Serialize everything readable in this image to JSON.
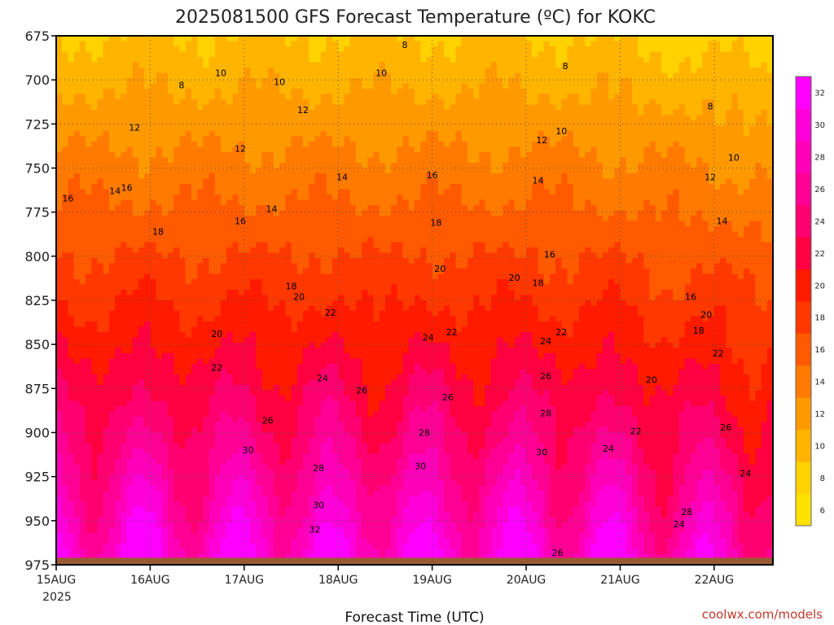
{
  "chart_data": {
    "type": "heatmap",
    "title": "2025081500 GFS Forecast Temperature (ºC) for KOKC",
    "xlabel": "Forecast Time (UTC)",
    "ylabel": "",
    "credit": "coolwx.com/models",
    "x_ticks": [
      "15AUG",
      "16AUG",
      "17AUG",
      "18AUG",
      "19AUG",
      "20AUG",
      "21AUG",
      "22AUG"
    ],
    "x_year_label": "2025",
    "x_range_hours": [
      0,
      183
    ],
    "y_ticks": [
      675,
      700,
      725,
      750,
      775,
      800,
      825,
      850,
      875,
      900,
      925,
      950,
      975
    ],
    "y_range_hpa": [
      675,
      975
    ],
    "y_reversed": true,
    "colorbar_ticks": [
      6,
      8,
      10,
      12,
      14,
      16,
      18,
      20,
      22,
      24,
      26,
      28,
      30,
      32
    ],
    "colorbar_colors": [
      "#ffe100",
      "#ffd200",
      "#ffb400",
      "#ff9900",
      "#ff7a00",
      "#ff5a00",
      "#ff3800",
      "#ff1a00",
      "#ff0040",
      "#ff0070",
      "#ff0095",
      "#ff00b8",
      "#ff00d8",
      "#ff00ff"
    ],
    "colorbar_bounds": [
      5,
      33
    ],
    "contour_interval": 2,
    "surface_pressure_hpa": 971,
    "ground_color": "#9a5a33",
    "grid": true,
    "contour_labels": [
      {
        "label": "8",
        "t": 32,
        "p": 703
      },
      {
        "label": "10",
        "t": 42,
        "p": 696
      },
      {
        "label": "10",
        "t": 57,
        "p": 701
      },
      {
        "label": "8",
        "t": 89,
        "p": 680
      },
      {
        "label": "10",
        "t": 83,
        "p": 696
      },
      {
        "label": "8",
        "t": 130,
        "p": 692
      },
      {
        "label": "8",
        "t": 167,
        "p": 715
      },
      {
        "label": "10",
        "t": 173,
        "p": 744
      },
      {
        "label": "10",
        "t": 129,
        "p": 729
      },
      {
        "label": "12",
        "t": 124,
        "p": 734
      },
      {
        "label": "12",
        "t": 20,
        "p": 727
      },
      {
        "label": "12",
        "t": 47,
        "p": 739
      },
      {
        "label": "12",
        "t": 63,
        "p": 717
      },
      {
        "label": "14",
        "t": 73,
        "p": 755
      },
      {
        "label": "16",
        "t": 96,
        "p": 754
      },
      {
        "label": "14",
        "t": 15,
        "p": 763
      },
      {
        "label": "16",
        "t": 18,
        "p": 761
      },
      {
        "label": "16",
        "t": 3,
        "p": 767
      },
      {
        "label": "14",
        "t": 55,
        "p": 773
      },
      {
        "label": "16",
        "t": 47,
        "p": 780
      },
      {
        "label": "14",
        "t": 123,
        "p": 757
      },
      {
        "label": "12",
        "t": 167,
        "p": 755
      },
      {
        "label": "14",
        "t": 170,
        "p": 780
      },
      {
        "label": "18",
        "t": 26,
        "p": 786
      },
      {
        "label": "18",
        "t": 97,
        "p": 781
      },
      {
        "label": "16",
        "t": 126,
        "p": 799
      },
      {
        "label": "16",
        "t": 162,
        "p": 823
      },
      {
        "label": "18",
        "t": 60,
        "p": 817
      },
      {
        "label": "20",
        "t": 62,
        "p": 823
      },
      {
        "label": "20",
        "t": 98,
        "p": 807
      },
      {
        "label": "20",
        "t": 117,
        "p": 812
      },
      {
        "label": "18",
        "t": 123,
        "p": 815
      },
      {
        "label": "20",
        "t": 166,
        "p": 833
      },
      {
        "label": "18",
        "t": 164,
        "p": 842
      },
      {
        "label": "20",
        "t": 41,
        "p": 844
      },
      {
        "label": "22",
        "t": 70,
        "p": 832
      },
      {
        "label": "22",
        "t": 101,
        "p": 843
      },
      {
        "label": "22",
        "t": 129,
        "p": 843
      },
      {
        "label": "24",
        "t": 95,
        "p": 846
      },
      {
        "label": "24",
        "t": 125,
        "p": 848
      },
      {
        "label": "22",
        "t": 169,
        "p": 855
      },
      {
        "label": "22",
        "t": 41,
        "p": 863
      },
      {
        "label": "24",
        "t": 68,
        "p": 869
      },
      {
        "label": "26",
        "t": 78,
        "p": 876
      },
      {
        "label": "26",
        "t": 100,
        "p": 880
      },
      {
        "label": "26",
        "t": 125,
        "p": 868
      },
      {
        "label": "20",
        "t": 152,
        "p": 870
      },
      {
        "label": "26",
        "t": 54,
        "p": 893
      },
      {
        "label": "28",
        "t": 94,
        "p": 900
      },
      {
        "label": "28",
        "t": 125,
        "p": 889
      },
      {
        "label": "22",
        "t": 148,
        "p": 899
      },
      {
        "label": "26",
        "t": 171,
        "p": 897
      },
      {
        "label": "30",
        "t": 49,
        "p": 910
      },
      {
        "label": "30",
        "t": 93,
        "p": 919
      },
      {
        "label": "30",
        "t": 124,
        "p": 911
      },
      {
        "label": "24",
        "t": 141,
        "p": 909
      },
      {
        "label": "28",
        "t": 67,
        "p": 920
      },
      {
        "label": "24",
        "t": 176,
        "p": 923
      },
      {
        "label": "30",
        "t": 67,
        "p": 941
      },
      {
        "label": "28",
        "t": 161,
        "p": 945
      },
      {
        "label": "24",
        "t": 159,
        "p": 952
      },
      {
        "label": "32",
        "t": 66,
        "p": 955
      },
      {
        "label": "26",
        "t": 128,
        "p": 968
      }
    ]
  }
}
